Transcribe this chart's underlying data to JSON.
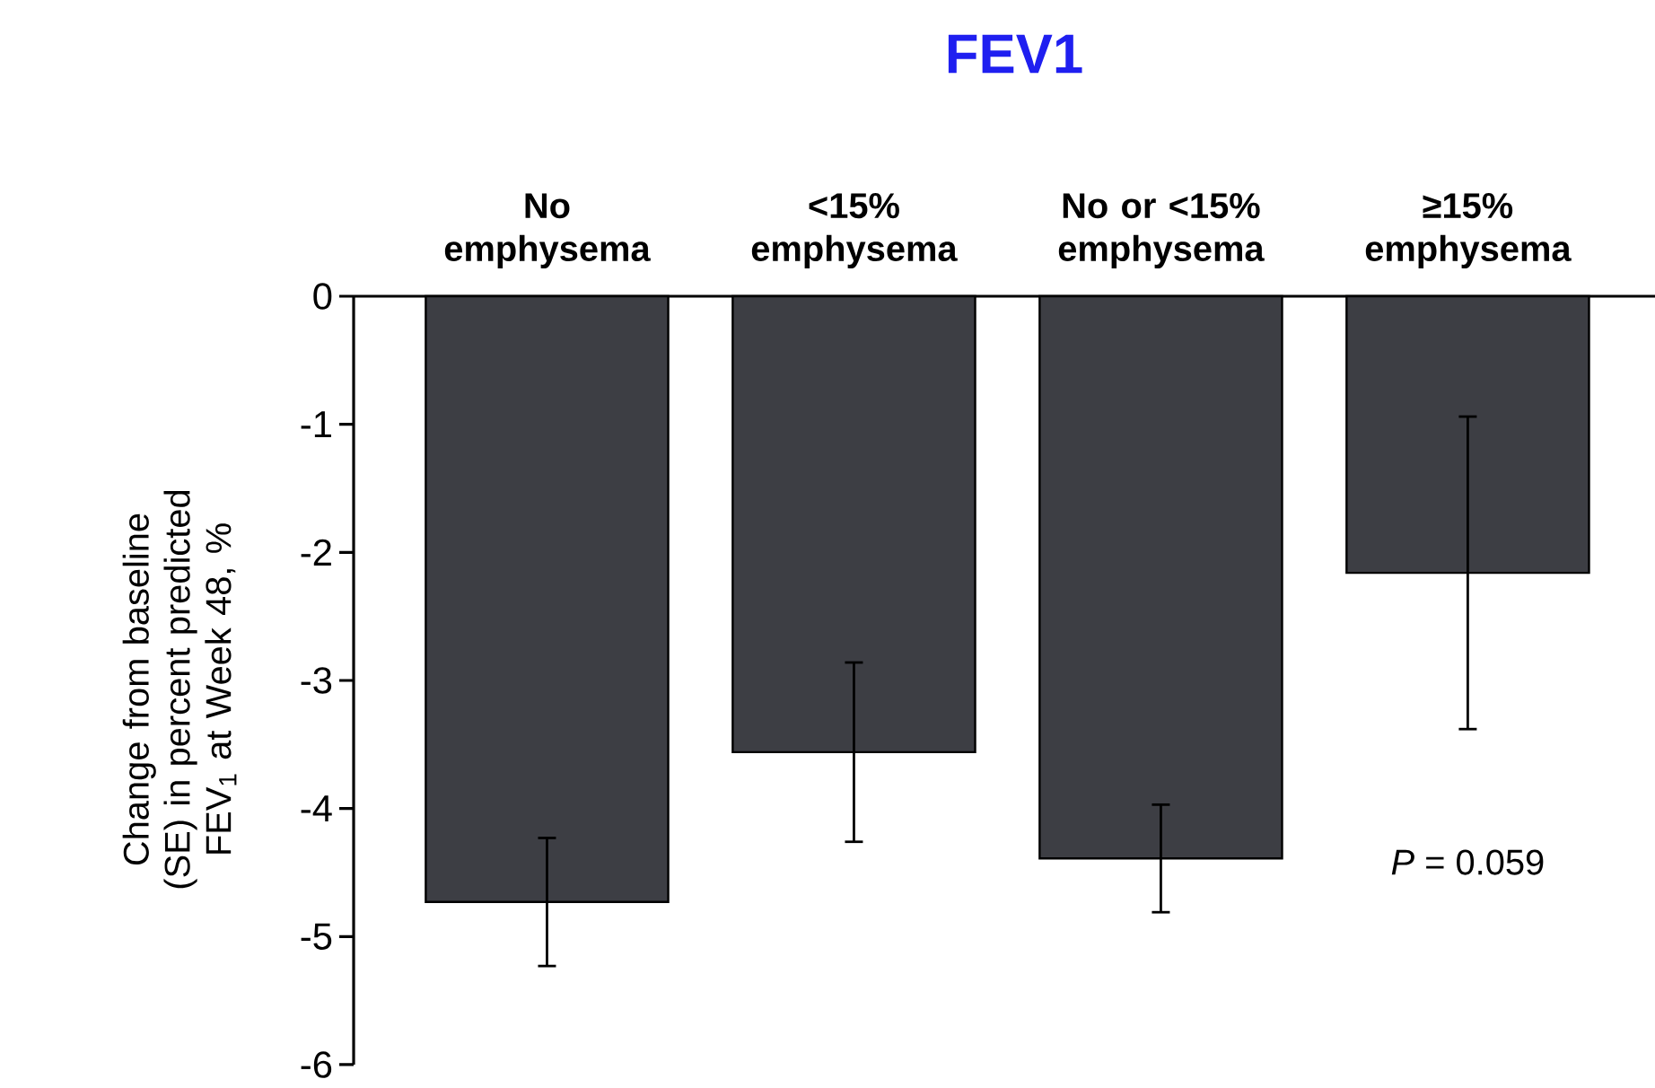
{
  "chart_data": {
    "type": "bar",
    "title": "FEV1",
    "categories": [
      "No emphysema",
      "<15% emphysema",
      "No or <15% emphysema",
      "≥15% emphysema"
    ],
    "values": [
      -4.73,
      -3.56,
      -4.39,
      -2.16
    ],
    "errors": [
      0.5,
      0.7,
      0.42,
      1.22
    ],
    "color": "#3d3e44",
    "ylabel": "Change from baseline (SE) in percent predicted FEV$_{1}$ at Week 48, %",
    "ylim": [
      -6,
      0
    ],
    "yticks": [
      -6,
      -5,
      -4,
      -3,
      -2,
      -1,
      0
    ],
    "annotations": [
      "*P* = 0.059"
    ],
    "grid": false
  }
}
